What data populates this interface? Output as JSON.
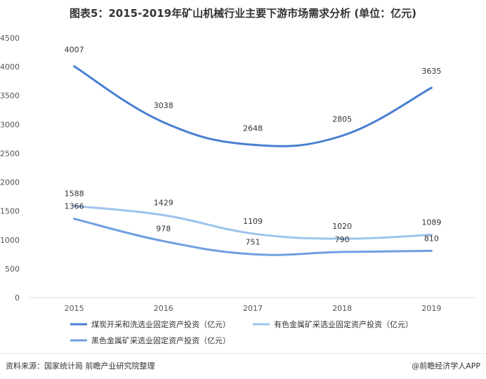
{
  "title": "图表5：2015-2019年矿山机械行业主要下游市场需求分析 (单位：亿元)",
  "chart_data": {
    "type": "line",
    "categories": [
      "2015",
      "2016",
      "2017",
      "2018",
      "2019"
    ],
    "series": [
      {
        "name": "煤炭开采和洗选业固定资产投资（亿元）",
        "values": [
          4007,
          3038,
          2648,
          2805,
          3635
        ],
        "color": "#4a7fd1"
      },
      {
        "name": "有色金属矿采选业固定资产投资（亿元）",
        "values": [
          1588,
          1429,
          1109,
          1020,
          1089
        ],
        "color": "#9dc3ee"
      },
      {
        "name": "黑色金属矿采选业固定资产投资（亿元）",
        "values": [
          1366,
          978,
          751,
          790,
          810
        ],
        "color": "#6f9fe0"
      }
    ],
    "yticks": [
      "0",
      "500",
      "1000",
      "1500",
      "2000",
      "2500",
      "3000",
      "3500",
      "4000",
      "4500"
    ],
    "ylim": [
      0,
      4500
    ],
    "grid": false,
    "legend": "bottom"
  },
  "footer": {
    "source": "资料来源：国家统计局 前瞻产业研究院整理",
    "brand": "@前瞻经济学人APP"
  }
}
